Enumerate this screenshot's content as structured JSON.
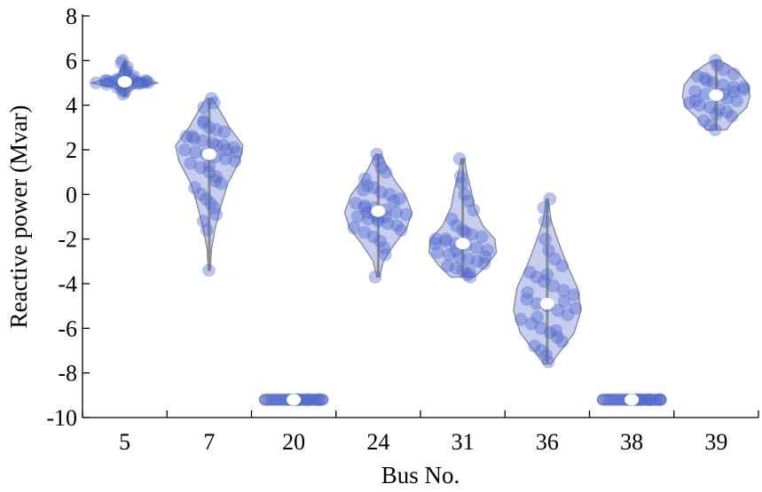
{
  "chart_data": {
    "type": "violin",
    "xlabel": "Bus No.",
    "ylabel": "Reactive power (Mvar)",
    "ylim": [
      -10,
      8
    ],
    "yticks": [
      -10,
      -8,
      -6,
      -4,
      -2,
      0,
      2,
      4,
      6,
      8
    ],
    "categories": [
      "5",
      "7",
      "20",
      "24",
      "31",
      "36",
      "38",
      "39"
    ],
    "color": "#4a64c8",
    "series": [
      {
        "category": "5",
        "min": 4.4,
        "max": 6.0,
        "median": 5.05,
        "density": [
          [
            4.4,
            0.03
          ],
          [
            4.6,
            0.12
          ],
          [
            4.8,
            0.35
          ],
          [
            5.0,
            1.0
          ],
          [
            5.2,
            0.45
          ],
          [
            5.4,
            0.18
          ],
          [
            5.6,
            0.1
          ],
          [
            5.8,
            0.05
          ],
          [
            6.0,
            0.02
          ]
        ],
        "points": [
          5.0,
          5.05,
          5.1,
          4.95,
          5.0,
          5.05,
          5.1,
          5.15,
          4.9,
          5.0,
          5.2,
          5.3,
          4.8,
          4.7,
          4.6,
          5.5,
          5.7,
          5.9,
          6.0,
          5.0,
          5.05,
          4.98,
          5.02,
          5.08,
          4.5,
          5.4,
          5.6,
          5.0,
          5.1,
          4.95
        ]
      },
      {
        "category": "7",
        "min": -3.4,
        "max": 4.3,
        "median": 1.8,
        "density": [
          [
            -3.4,
            0.03
          ],
          [
            -2.5,
            0.06
          ],
          [
            -1.5,
            0.18
          ],
          [
            -0.5,
            0.35
          ],
          [
            0.5,
            0.55
          ],
          [
            1.5,
            0.9
          ],
          [
            2.2,
            1.0
          ],
          [
            3.0,
            0.6
          ],
          [
            3.8,
            0.3
          ],
          [
            4.3,
            0.08
          ]
        ],
        "points": [
          4.3,
          4.1,
          3.9,
          3.2,
          3.0,
          2.9,
          2.8,
          2.6,
          2.5,
          2.4,
          2.3,
          2.2,
          2.1,
          2.0,
          1.9,
          1.8,
          1.7,
          1.6,
          1.5,
          1.4,
          1.2,
          1.0,
          0.8,
          0.5,
          0.3,
          0.0,
          -0.2,
          -0.4,
          -0.6,
          -0.9,
          -1.2,
          -1.6,
          -3.4,
          2.2,
          2.0,
          1.9,
          2.6,
          3.3,
          1.3,
          0.6
        ]
      },
      {
        "category": "20",
        "min": -9.3,
        "max": -9.1,
        "median": -9.2,
        "density": [
          [
            -9.3,
            0.9
          ],
          [
            -9.25,
            1.0
          ],
          [
            -9.2,
            1.0
          ],
          [
            -9.15,
            1.0
          ],
          [
            -9.1,
            0.9
          ]
        ],
        "points": [
          -9.2,
          -9.2,
          -9.2,
          -9.2,
          -9.2,
          -9.2,
          -9.2,
          -9.2,
          -9.2,
          -9.2,
          -9.2,
          -9.2,
          -9.2,
          -9.2,
          -9.2,
          -9.2,
          -9.2,
          -9.2,
          -9.2,
          -9.2
        ]
      },
      {
        "category": "24",
        "min": -3.7,
        "max": 1.8,
        "median": -0.75,
        "density": [
          [
            -3.7,
            0.04
          ],
          [
            -3.0,
            0.15
          ],
          [
            -2.3,
            0.45
          ],
          [
            -1.5,
            0.85
          ],
          [
            -0.8,
            1.0
          ],
          [
            0.0,
            0.8
          ],
          [
            0.6,
            0.5
          ],
          [
            1.2,
            0.28
          ],
          [
            1.8,
            0.08
          ]
        ],
        "points": [
          1.8,
          1.5,
          1.2,
          1.0,
          0.7,
          0.4,
          0.3,
          0.1,
          0.0,
          -0.2,
          -0.4,
          -0.5,
          -0.6,
          -0.7,
          -0.8,
          -0.9,
          -1.0,
          -1.1,
          -1.2,
          -1.3,
          -1.4,
          -1.5,
          -1.7,
          -1.9,
          -2.1,
          -2.4,
          -2.7,
          -3.7,
          -0.6,
          -0.9,
          -1.0,
          -0.3,
          -1.6,
          0.2,
          -0.8,
          -1.1
        ]
      },
      {
        "category": "31",
        "min": -3.7,
        "max": 1.6,
        "median": -2.2,
        "density": [
          [
            -3.7,
            0.35
          ],
          [
            -3.2,
            0.7
          ],
          [
            -2.6,
            1.0
          ],
          [
            -2.0,
            0.95
          ],
          [
            -1.4,
            0.6
          ],
          [
            -0.6,
            0.35
          ],
          [
            0.2,
            0.25
          ],
          [
            1.0,
            0.12
          ],
          [
            1.6,
            0.05
          ]
        ],
        "points": [
          1.6,
          0.8,
          0.5,
          0.0,
          -0.3,
          -0.7,
          -1.1,
          -1.4,
          -1.6,
          -1.8,
          -1.9,
          -2.0,
          -2.1,
          -2.2,
          -2.3,
          -2.4,
          -2.5,
          -2.6,
          -2.7,
          -2.8,
          -2.9,
          -3.0,
          -3.1,
          -3.2,
          -3.3,
          -3.4,
          -3.6,
          -3.7,
          -2.2,
          -2.0,
          -2.5,
          -1.7,
          -3.5,
          -2.8
        ]
      },
      {
        "category": "36",
        "min": -7.6,
        "max": -0.2,
        "median": -4.9,
        "density": [
          [
            -7.6,
            0.1
          ],
          [
            -7.0,
            0.4
          ],
          [
            -6.2,
            0.8
          ],
          [
            -5.2,
            1.0
          ],
          [
            -4.2,
            0.9
          ],
          [
            -3.2,
            0.6
          ],
          [
            -2.2,
            0.35
          ],
          [
            -1.2,
            0.12
          ],
          [
            -0.2,
            0.03
          ]
        ],
        "points": [
          -0.2,
          -0.6,
          -1.2,
          -2.0,
          -2.5,
          -2.9,
          -3.2,
          -3.5,
          -3.7,
          -3.9,
          -4.1,
          -4.3,
          -4.5,
          -4.7,
          -4.9,
          -5.0,
          -5.2,
          -5.4,
          -5.6,
          -5.8,
          -6.0,
          -6.2,
          -6.4,
          -6.6,
          -6.8,
          -7.0,
          -7.2,
          -7.5,
          -4.8,
          -5.1,
          -4.4,
          -5.5,
          -3.6,
          -6.1
        ]
      },
      {
        "category": "38",
        "min": -9.3,
        "max": -9.1,
        "median": -9.2,
        "density": [
          [
            -9.3,
            0.9
          ],
          [
            -9.25,
            1.0
          ],
          [
            -9.2,
            1.0
          ],
          [
            -9.15,
            1.0
          ],
          [
            -9.1,
            0.9
          ]
        ],
        "points": [
          -9.2,
          -9.2,
          -9.2,
          -9.2,
          -9.2,
          -9.2,
          -9.2,
          -9.2,
          -9.2,
          -9.2,
          -9.2,
          -9.2,
          -9.2,
          -9.2,
          -9.2,
          -9.2,
          -9.2,
          -9.2,
          -9.2,
          -9.2
        ]
      },
      {
        "category": "39",
        "min": 2.9,
        "max": 6.0,
        "median": 4.45,
        "density": [
          [
            2.9,
            0.3
          ],
          [
            3.4,
            0.55
          ],
          [
            3.9,
            0.9
          ],
          [
            4.4,
            1.0
          ],
          [
            4.9,
            0.95
          ],
          [
            5.4,
            0.7
          ],
          [
            5.8,
            0.35
          ],
          [
            6.0,
            0.1
          ]
        ],
        "points": [
          6.0,
          5.8,
          5.6,
          5.4,
          5.3,
          5.2,
          5.0,
          4.9,
          4.8,
          4.7,
          4.6,
          4.5,
          4.4,
          4.3,
          4.2,
          4.1,
          4.0,
          3.9,
          3.8,
          3.7,
          3.5,
          3.3,
          3.1,
          2.9,
          4.5,
          4.6,
          4.8,
          4.2,
          5.1,
          3.6
        ]
      }
    ]
  }
}
